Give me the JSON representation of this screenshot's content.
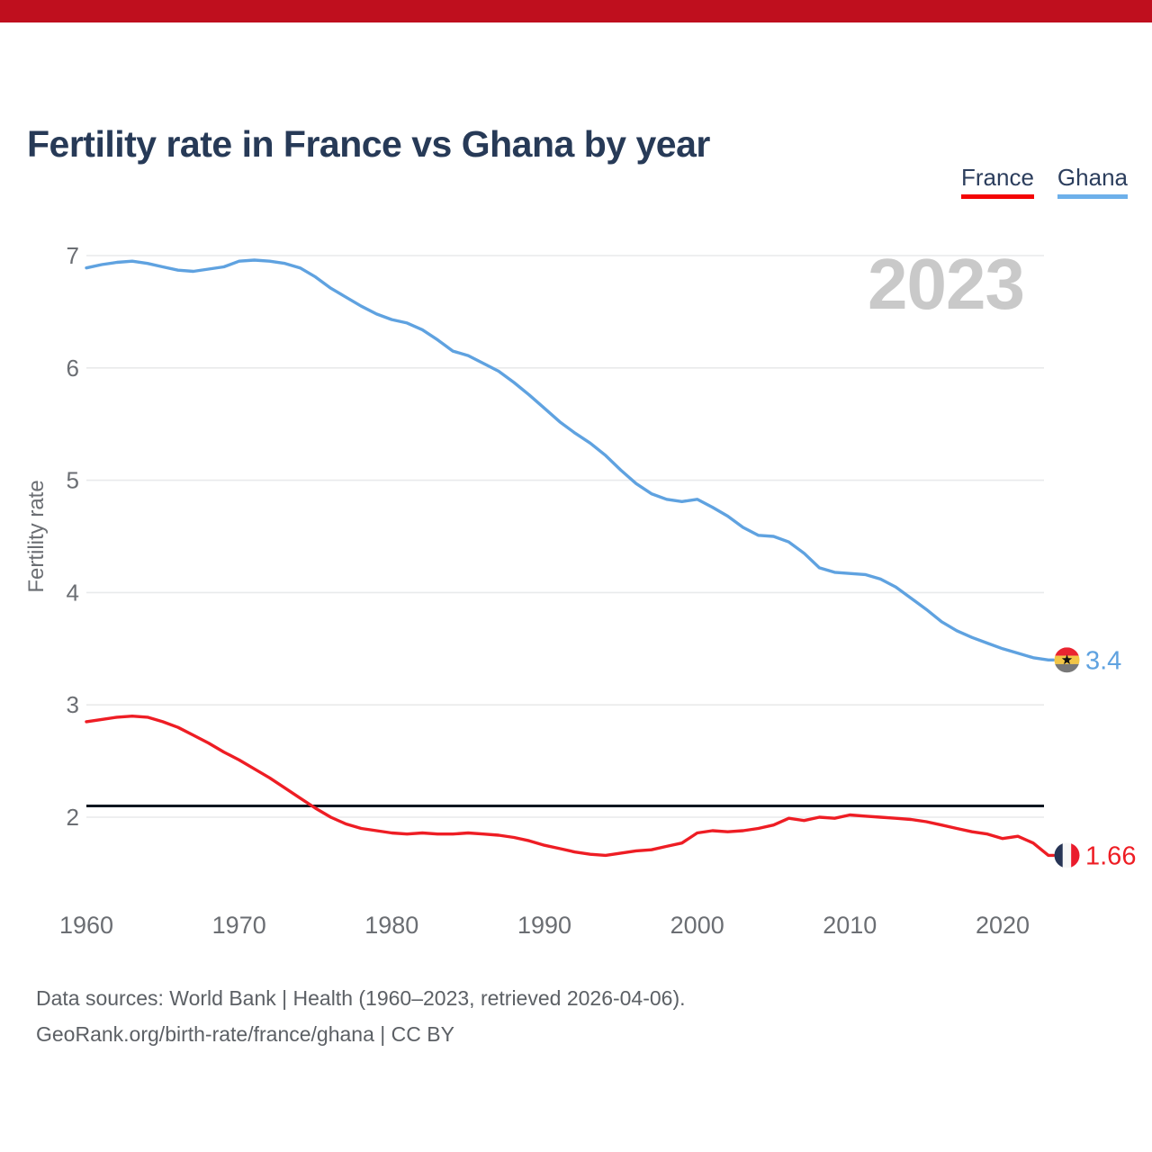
{
  "page": {
    "accent_bar_color": "#bf0f1e",
    "background": "#ffffff"
  },
  "header": {
    "title": "Fertility rate in France vs Ghana by year"
  },
  "legend": {
    "items": [
      {
        "label": "France",
        "color": "#f40505"
      },
      {
        "label": "Ghana",
        "color": "#6db0ea"
      }
    ]
  },
  "watermark": "2023",
  "chart_data": {
    "type": "line",
    "title": "Fertility rate in France vs Ghana by year",
    "xlabel": "",
    "ylabel": "Fertility rate",
    "grid": "horizontal",
    "legend_position": "top-right",
    "yticks": [
      2,
      3,
      4,
      5,
      6,
      7
    ],
    "xticks": [
      1960,
      1970,
      1980,
      1990,
      2000,
      2010,
      2020
    ],
    "ylim": [
      1.45,
      7.15
    ],
    "xlim": [
      1960,
      2023
    ],
    "tick_color": "#6b6e73",
    "grid_color": "#e9eaeb",
    "reference_line": {
      "value": 2.1,
      "color": "#0f1620"
    },
    "x": [
      1960,
      1961,
      1962,
      1963,
      1964,
      1965,
      1966,
      1967,
      1968,
      1969,
      1970,
      1971,
      1972,
      1973,
      1974,
      1975,
      1976,
      1977,
      1978,
      1979,
      1980,
      1981,
      1982,
      1983,
      1984,
      1985,
      1986,
      1987,
      1988,
      1989,
      1990,
      1991,
      1992,
      1993,
      1994,
      1995,
      1996,
      1997,
      1998,
      1999,
      2000,
      2001,
      2002,
      2003,
      2004,
      2005,
      2006,
      2007,
      2008,
      2009,
      2010,
      2011,
      2012,
      2013,
      2014,
      2015,
      2016,
      2017,
      2018,
      2019,
      2020,
      2021,
      2022,
      2023
    ],
    "series": [
      {
        "name": "France",
        "color": "#ee1d24",
        "end_label": "1.66",
        "flag": "france",
        "flag_colors": {
          "blue": "#273455",
          "white": "#f7f7f7",
          "red": "#ea1c2c"
        },
        "values": [
          2.85,
          2.87,
          2.89,
          2.9,
          2.89,
          2.85,
          2.8,
          2.73,
          2.66,
          2.58,
          2.51,
          2.43,
          2.35,
          2.26,
          2.17,
          2.08,
          2.0,
          1.94,
          1.9,
          1.88,
          1.86,
          1.85,
          1.86,
          1.85,
          1.85,
          1.86,
          1.85,
          1.84,
          1.82,
          1.79,
          1.75,
          1.72,
          1.69,
          1.67,
          1.66,
          1.68,
          1.7,
          1.71,
          1.74,
          1.77,
          1.86,
          1.88,
          1.87,
          1.88,
          1.9,
          1.93,
          1.99,
          1.97,
          2.0,
          1.99,
          2.02,
          2.01,
          2.0,
          1.99,
          1.98,
          1.96,
          1.93,
          1.9,
          1.87,
          1.85,
          1.81,
          1.83,
          1.77,
          1.66
        ]
      },
      {
        "name": "Ghana",
        "color": "#5fa2e0",
        "end_label": "3.4",
        "flag": "ghana",
        "flag_colors": {
          "red": "#ea2430",
          "gold": "#f2c545",
          "bottom": "#787878",
          "star": "#111111"
        },
        "values": [
          6.89,
          6.92,
          6.94,
          6.95,
          6.93,
          6.9,
          6.87,
          6.86,
          6.88,
          6.9,
          6.95,
          6.96,
          6.95,
          6.93,
          6.89,
          6.81,
          6.71,
          6.63,
          6.55,
          6.48,
          6.43,
          6.4,
          6.34,
          6.25,
          6.15,
          6.11,
          6.04,
          5.97,
          5.87,
          5.76,
          5.64,
          5.52,
          5.42,
          5.33,
          5.22,
          5.09,
          4.97,
          4.88,
          4.83,
          4.81,
          4.83,
          4.76,
          4.68,
          4.58,
          4.51,
          4.5,
          4.45,
          4.35,
          4.22,
          4.18,
          4.17,
          4.16,
          4.12,
          4.05,
          3.95,
          3.85,
          3.74,
          3.66,
          3.6,
          3.55,
          3.5,
          3.46,
          3.42,
          3.4
        ]
      }
    ]
  },
  "footer": {
    "line1": "Data sources: World Bank | Health (1960–2023, retrieved 2026-04-06).",
    "line2": "GeoRank.org/birth-rate/france/ghana | CC BY"
  }
}
